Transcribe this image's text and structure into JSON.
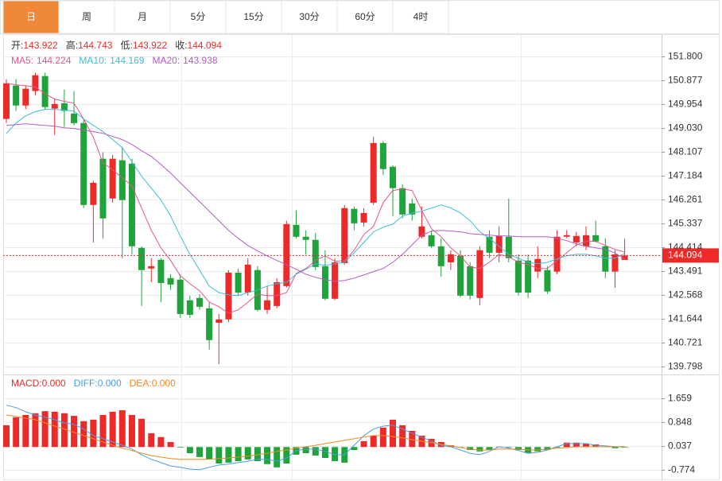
{
  "tabs": [
    "日",
    "周",
    "月",
    "5分",
    "15分",
    "30分",
    "60分",
    "4时"
  ],
  "active_tab": 0,
  "chart_data": [
    {
      "type": "candlestick",
      "ohlc_labels": [
        "开:",
        "高:",
        "低:",
        "收:"
      ],
      "up_color": "#ec2a2a",
      "down_color": "#1fa33a",
      "grid": true,
      "last_price_line": true,
      "ylim": [
        139.52,
        152.63
      ],
      "yticks": [
        {
          "value": 151.8,
          "label": "151.800"
        },
        150.877,
        149.954,
        {
          "value": 149.03,
          "label": "149.030"
        },
        148.107,
        147.184,
        146.261,
        145.337,
        144.414,
        143.491,
        142.568,
        141.644,
        140.721,
        139.798
      ],
      "open": [
        149.38,
        150.67,
        149.9,
        150.46,
        151.04,
        149.78,
        149.99,
        149.59,
        149.22,
        146.05,
        147.84,
        146.3,
        147.78,
        147.65,
        144.39,
        143.59,
        143.93,
        143.22,
        143.16,
        142.36,
        142.45,
        142.05,
        141.49,
        141.62,
        143.43,
        142.66,
        143.53,
        141.99,
        142.14,
        142.91,
        145.28,
        144.82,
        144.7,
        143.68,
        142.42,
        143.8,
        145.9,
        145.37,
        146.14,
        148.45,
        147.53,
        146.7,
        146.11,
        144.82,
        144.88,
        144.45,
        143.83,
        144.08,
        143.68,
        142.45,
        144.82,
        144.2,
        144.82,
        143.9,
        143.9,
        143.47,
        143.53,
        143.47,
        144.82,
        144.6,
        144.45,
        144.88,
        144.45,
        143.47,
        143.922
      ],
      "high": [
        150.92,
        150.92,
        150.67,
        151.17,
        151.17,
        150.15,
        150.52,
        150.46,
        149.38,
        146.98,
        148.09,
        147.99,
        148.3,
        147.84,
        144.45,
        143.99,
        143.99,
        143.37,
        143.37,
        142.54,
        142.6,
        142.29,
        141.83,
        143.53,
        143.59,
        143.99,
        143.68,
        142.91,
        143.22,
        145.44,
        145.84,
        145.07,
        144.97,
        144.3,
        143.99,
        146.05,
        145.99,
        145.93,
        148.7,
        148.52,
        147.59,
        146.85,
        146.3,
        145.99,
        145.07,
        144.76,
        144.3,
        144.3,
        143.83,
        144.45,
        145.07,
        145.22,
        146.3,
        144.14,
        144.14,
        144.45,
        143.68,
        145.07,
        145.07,
        145.01,
        145.22,
        145.44,
        144.76,
        144.3,
        144.743
      ],
      "low": [
        149.22,
        149.69,
        149.75,
        150.3,
        149.75,
        148.76,
        149.07,
        149.13,
        145.93,
        144.6,
        144.76,
        146.14,
        143.99,
        144.14,
        142.14,
        143.06,
        142.29,
        142.76,
        141.68,
        141.68,
        141.99,
        140.45,
        139.89,
        141.52,
        142.54,
        142.54,
        141.93,
        141.83,
        142.05,
        142.85,
        144.76,
        144.14,
        143.53,
        142.36,
        142.36,
        143.74,
        145.07,
        145.22,
        146.05,
        147.22,
        145.62,
        145.53,
        145.44,
        144.76,
        144.39,
        143.28,
        143.53,
        142.48,
        142.39,
        142.17,
        143.99,
        143.83,
        143.83,
        142.54,
        142.45,
        143.22,
        142.6,
        143.37,
        144.76,
        144.45,
        144.3,
        144.6,
        143.22,
        142.85,
        143.922
      ],
      "close": [
        150.76,
        149.9,
        150.55,
        151.07,
        149.84,
        149.96,
        149.69,
        149.22,
        146.05,
        146.91,
        145.53,
        147.84,
        146.24,
        144.45,
        143.53,
        143.68,
        143.03,
        142.97,
        141.83,
        141.8,
        142.11,
        140.82,
        141.62,
        143.43,
        142.66,
        143.74,
        141.99,
        142.36,
        143.06,
        145.31,
        144.82,
        144.7,
        143.65,
        142.42,
        143.83,
        145.93,
        145.34,
        145.74,
        148.45,
        147.44,
        146.7,
        145.68,
        145.68,
        145.22,
        144.45,
        143.68,
        144.14,
        142.54,
        142.54,
        144.3,
        144.2,
        144.85,
        143.99,
        142.66,
        142.66,
        143.96,
        142.7,
        144.82,
        144.88,
        144.85,
        144.88,
        144.64,
        143.47,
        144.14,
        144.094
      ],
      "series": [
        {
          "name": "MA5:",
          "color": "#e4568c",
          "values": [
            150.76,
            150.7,
            150.67,
            150.61,
            150.36,
            150.15,
            150.06,
            149.99,
            149.38,
            148.67,
            147.68,
            147.41,
            147.1,
            146.79,
            145.93,
            145.07,
            144.39,
            143.9,
            143.31,
            143.0,
            142.73,
            142.29,
            142.11,
            141.86,
            141.99,
            142.29,
            142.6,
            142.54,
            142.54,
            142.66,
            143.4,
            143.59,
            143.9,
            144.08,
            143.87,
            143.9,
            144.3,
            144.91,
            145.22,
            146.14,
            146.61,
            146.67,
            146.61,
            145.84,
            145.13,
            144.82,
            144.39,
            144.08,
            143.65,
            143.59,
            143.83,
            144.14,
            144.05,
            143.83,
            143.74,
            143.59,
            143.59,
            143.9,
            144.2,
            144.51,
            144.64,
            144.64,
            144.48,
            144.33,
            144.224
          ]
        },
        {
          "name": "MA10:",
          "color": "#3dbcd8",
          "values": [
            148.82,
            149.22,
            149.5,
            149.66,
            149.75,
            149.75,
            149.72,
            149.69,
            149.38,
            149.13,
            148.89,
            148.58,
            148.27,
            147.72,
            147.16,
            146.7,
            146.24,
            145.62,
            144.85,
            144.14,
            143.53,
            142.91,
            142.66,
            142.57,
            142.54,
            142.66,
            142.76,
            142.91,
            143.0,
            143.06,
            143.37,
            143.56,
            143.77,
            143.71,
            143.77,
            143.83,
            144.2,
            144.6,
            145.01,
            145.19,
            145.31,
            145.62,
            145.74,
            145.81,
            145.93,
            146.05,
            145.93,
            145.74,
            145.44,
            145.01,
            144.76,
            144.45,
            144.14,
            143.99,
            143.83,
            143.77,
            143.83,
            143.96,
            144.08,
            144.14,
            144.14,
            144.08,
            143.99,
            143.99,
            144.169
          ]
        },
        {
          "name": "MA20:",
          "color": "#b45cc6",
          "values": [
            149.13,
            149.16,
            149.19,
            149.16,
            149.13,
            149.1,
            149.04,
            149.01,
            148.95,
            148.89,
            148.82,
            148.7,
            148.58,
            148.39,
            148.15,
            147.93,
            147.62,
            147.28,
            146.91,
            146.55,
            146.18,
            145.81,
            145.44,
            145.07,
            144.76,
            144.48,
            144.27,
            144.08,
            143.9,
            143.74,
            143.56,
            143.37,
            143.25,
            143.16,
            143.1,
            143.13,
            143.22,
            143.34,
            143.47,
            143.59,
            143.83,
            144.14,
            144.51,
            144.88,
            145.04,
            145.07,
            145.04,
            145.01,
            144.94,
            144.91,
            144.88,
            144.85,
            144.85,
            144.82,
            144.82,
            144.82,
            144.82,
            144.76,
            144.67,
            144.54,
            144.45,
            144.39,
            144.33,
            144.2,
            143.938
          ]
        }
      ]
    },
    {
      "type": "macd",
      "ylim": [
        -1.1,
        2.44
      ],
      "yticks": [
        1.659,
        0.848,
        0.037,
        -0.774
      ],
      "grid": true,
      "series": [
        {
          "name": "MACD:",
          "style": "bar",
          "color": "#ec2a2a",
          "down_color": "#1fa33a",
          "legend_value": {
            "value": 0,
            "label": "0.000"
          },
          "values": [
            0.74,
            1.01,
            1.09,
            1.15,
            1.22,
            1.2,
            1.15,
            1.06,
            0.88,
            0.93,
            1.09,
            1.2,
            1.25,
            1.09,
            0.96,
            0.47,
            0.34,
            0.17,
            -0.02,
            -0.21,
            -0.34,
            -0.42,
            -0.56,
            -0.53,
            -0.48,
            -0.42,
            -0.48,
            -0.58,
            -0.69,
            -0.56,
            -0.26,
            -0.21,
            -0.29,
            -0.37,
            -0.48,
            -0.53,
            -0.1,
            0.2,
            0.39,
            0.66,
            0.93,
            0.74,
            0.55,
            0.39,
            0.28,
            0.17,
            0.06,
            -0.02,
            -0.1,
            -0.15,
            -0.1,
            0.01,
            -0.02,
            -0.1,
            -0.21,
            -0.15,
            -0.1,
            -0.02,
            0.15,
            0.15,
            0.12,
            0.09,
            0.01,
            -0.04,
            -0.02
          ]
        },
        {
          "name": "DIFF:",
          "style": "line",
          "color": "#4a9de2",
          "legend_value": {
            "value": 0,
            "label": "0.000"
          },
          "values": [
            1.42,
            1.34,
            1.2,
            1.09,
            1.01,
            0.93,
            0.82,
            0.77,
            0.61,
            0.39,
            0.28,
            0.17,
            0.06,
            -0.07,
            -0.26,
            -0.42,
            -0.53,
            -0.64,
            -0.69,
            -0.75,
            -0.77,
            -0.69,
            -0.61,
            -0.58,
            -0.53,
            -0.48,
            -0.42,
            -0.42,
            -0.48,
            -0.37,
            -0.12,
            -0.07,
            -0.07,
            -0.15,
            -0.26,
            -0.26,
            0.06,
            0.39,
            0.61,
            0.71,
            0.74,
            0.61,
            0.47,
            0.34,
            0.2,
            0.06,
            0.01,
            -0.1,
            -0.21,
            -0.26,
            -0.15,
            0.01,
            -0.04,
            -0.12,
            -0.21,
            -0.18,
            -0.1,
            0.01,
            0.12,
            0.12,
            0.12,
            0.06,
            0.04,
            0.01,
            0.01
          ]
        },
        {
          "name": "DEA:",
          "style": "line",
          "color": "#f08a24",
          "legend_value": {
            "value": 0,
            "label": "0.000"
          },
          "values": [
            1.09,
            1.04,
            0.98,
            0.93,
            0.82,
            0.71,
            0.61,
            0.5,
            0.39,
            0.28,
            0.17,
            0.06,
            -0.04,
            -0.12,
            -0.21,
            -0.29,
            -0.34,
            -0.39,
            -0.42,
            -0.42,
            -0.42,
            -0.42,
            -0.39,
            -0.37,
            -0.34,
            -0.31,
            -0.26,
            -0.21,
            -0.15,
            -0.1,
            -0.04,
            0.01,
            0.06,
            0.12,
            0.17,
            0.23,
            0.28,
            0.34,
            0.39,
            0.39,
            0.36,
            0.31,
            0.25,
            0.2,
            0.15,
            0.09,
            0.04,
            -0.02,
            -0.07,
            -0.1,
            -0.1,
            -0.07,
            -0.07,
            -0.07,
            -0.1,
            -0.1,
            -0.07,
            -0.04,
            -0.02,
            0.01,
            0.01,
            0.01,
            0.01,
            0.01,
            0.01
          ]
        }
      ]
    }
  ]
}
